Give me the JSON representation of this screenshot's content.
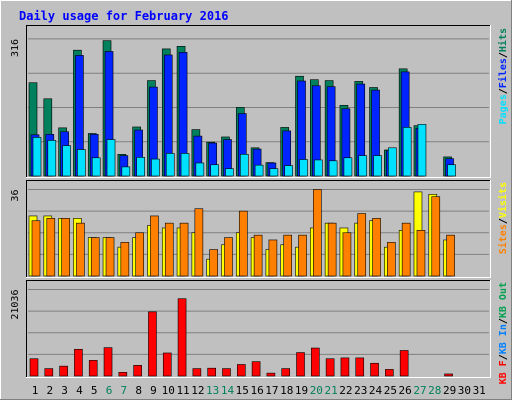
{
  "title": "Daily usage for February 2016",
  "colors": {
    "bg": "#ffffff",
    "panel": "#c0c0c0",
    "title": "#0000ff",
    "hits": "#00805c",
    "files": "#0024ff",
    "pages": "#00e0ff",
    "visits": "#ffff00",
    "sites": "#ff8000",
    "kbin": "#0080ff",
    "kbout": "#00a050",
    "kbf": "#ff0000",
    "weekend": "#00805c",
    "dayText": "#000000"
  },
  "legends": {
    "top": [
      {
        "text": "Pages",
        "color": "#00e0ff"
      },
      {
        "text": "/",
        "color": "#000000"
      },
      {
        "text": "Files",
        "color": "#0024ff"
      },
      {
        "text": "/",
        "color": "#000000"
      },
      {
        "text": "Hits",
        "color": "#00805c"
      }
    ],
    "mid": [
      {
        "text": "Sites",
        "color": "#ff8000"
      },
      {
        "text": "/",
        "color": "#000000"
      },
      {
        "text": "Visits",
        "color": "#ffff00"
      }
    ],
    "bot": [
      {
        "text": "KB F",
        "color": "#ff0000"
      },
      {
        "text": "/",
        "color": "#000000"
      },
      {
        "text": "KB In",
        "color": "#0080ff"
      },
      {
        "text": "/",
        "color": "#000000"
      },
      {
        "text": "KB Out",
        "color": "#00a050"
      }
    ]
  },
  "chart_data": [
    {
      "type": "bar",
      "panel": "hits-files-pages",
      "ymax_label": "316",
      "ylim": [
        0,
        316
      ],
      "categories": [
        "1",
        "2",
        "3",
        "4",
        "5",
        "6",
        "7",
        "8",
        "9",
        "10",
        "11",
        "12",
        "13",
        "14",
        "15",
        "16",
        "17",
        "18",
        "19",
        "20",
        "21",
        "22",
        "23",
        "24",
        "25",
        "26",
        "27",
        "28",
        "29",
        "30",
        "31"
      ],
      "series": [
        {
          "name": "Hits",
          "values": [
            215,
            178,
            111,
            290,
            98,
            312,
            50,
            113,
            220,
            293,
            299,
            107,
            78,
            90,
            158,
            65,
            31,
            112,
            230,
            222,
            220,
            163,
            218,
            204,
            60,
            247,
            116,
            0,
            44,
            0,
            0
          ]
        },
        {
          "name": "Files",
          "values": [
            95,
            96,
            102,
            278,
            96,
            287,
            47,
            106,
            205,
            279,
            285,
            92,
            76,
            84,
            144,
            62,
            30,
            104,
            219,
            208,
            206,
            155,
            212,
            198,
            58,
            240,
            110,
            0,
            40,
            0,
            0
          ]
        },
        {
          "name": "Pages",
          "values": [
            89,
            82,
            70,
            61,
            42,
            84,
            21,
            43,
            39,
            52,
            52,
            30,
            26,
            17,
            50,
            25,
            17,
            24,
            38,
            37,
            35,
            42,
            47,
            47,
            65,
            112,
            119,
            0,
            26,
            0,
            0
          ]
        }
      ]
    },
    {
      "type": "bar",
      "panel": "visits-sites",
      "ymax_label": "36",
      "ylim": [
        0,
        36
      ],
      "categories": [
        "1",
        "2",
        "3",
        "4",
        "5",
        "6",
        "7",
        "8",
        "9",
        "10",
        "11",
        "12",
        "13",
        "14",
        "15",
        "16",
        "17",
        "18",
        "19",
        "20",
        "21",
        "22",
        "23",
        "24",
        "25",
        "26",
        "27",
        "28",
        "29",
        "30",
        "31"
      ],
      "series": [
        {
          "name": "Visits",
          "values": [
            25,
            25,
            24,
            24,
            16,
            16,
            12,
            16,
            21,
            20,
            20,
            18,
            7,
            13,
            18,
            16,
            11,
            13,
            12,
            20,
            22,
            20,
            22,
            23,
            12,
            19,
            35,
            34,
            15,
            0,
            0
          ]
        },
        {
          "name": "Sites",
          "values": [
            23,
            24,
            24,
            22,
            16,
            16,
            14,
            18,
            25,
            22,
            22,
            28,
            11,
            16,
            27,
            17,
            15,
            17,
            17,
            36,
            22,
            18,
            26,
            24,
            14,
            22,
            19,
            33,
            17,
            0,
            0
          ]
        }
      ]
    },
    {
      "type": "bar",
      "panel": "kbf",
      "ymax_label": "21036",
      "ylim": [
        0,
        21036
      ],
      "categories": [
        "1",
        "2",
        "3",
        "4",
        "5",
        "6",
        "7",
        "8",
        "9",
        "10",
        "11",
        "12",
        "13",
        "14",
        "15",
        "16",
        "17",
        "18",
        "19",
        "20",
        "21",
        "22",
        "23",
        "24",
        "25",
        "26",
        "27",
        "28",
        "29",
        "30",
        "31"
      ],
      "series": [
        {
          "name": "KB F",
          "values": [
            4200,
            1800,
            2400,
            6500,
            3800,
            6900,
            900,
            2600,
            15600,
            5600,
            18800,
            1800,
            1900,
            1800,
            2800,
            3500,
            700,
            1800,
            5700,
            6800,
            4200,
            4400,
            4400,
            3100,
            1600,
            6200,
            0,
            0,
            500,
            0,
            0
          ]
        }
      ]
    }
  ]
}
